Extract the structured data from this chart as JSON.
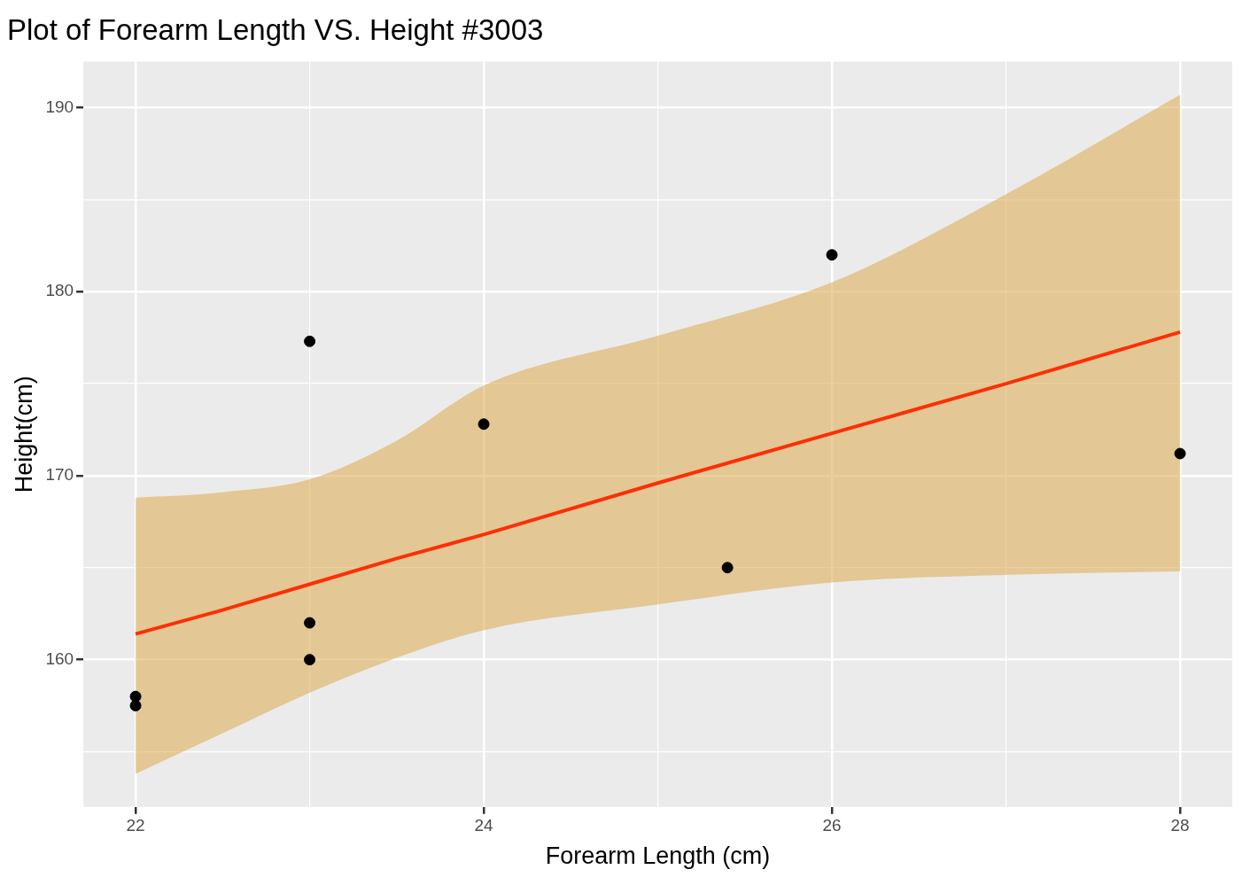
{
  "chart_data": {
    "type": "scatter",
    "title": "Plot of Forearm Length VS. Height #3003",
    "xlabel": "Forearm Length (cm)",
    "ylabel": "Height(cm)",
    "xlim": [
      21.7,
      28.3
    ],
    "ylim": [
      152,
      192.5
    ],
    "xticks": [
      22,
      {
        "value": 23,
        "label": null
      },
      24,
      {
        "value": 25,
        "label": null
      },
      26,
      {
        "value": 27,
        "label": null
      },
      28
    ],
    "yticks": [
      {
        "value": 155,
        "label": null
      },
      160,
      {
        "value": 165,
        "label": null
      },
      170,
      {
        "value": 175,
        "label": null
      },
      180,
      {
        "value": 185,
        "label": null
      },
      190
    ],
    "grid": true,
    "legend": false,
    "series": [
      {
        "color": "#000000",
        "marker": "circle",
        "x": [
          22,
          22,
          23,
          23,
          23,
          24,
          25.4,
          26,
          28
        ],
        "values": [
          158,
          157.5,
          177.3,
          162,
          160,
          172.8,
          165,
          182,
          171.2
        ]
      },
      {
        "type": "line",
        "color": "#fc2f06",
        "line_style": "solid",
        "x": [
          22,
          22.5,
          23,
          23.5,
          24,
          25,
          26,
          27,
          28
        ],
        "values": [
          161.4,
          162.7,
          164.1,
          165.5,
          166.8,
          169.6,
          172.3,
          175,
          177.8
        ],
        "lower": [
          153.8,
          156,
          158.2,
          160.1,
          161.6,
          163,
          164.2,
          164.6,
          164.8
        ],
        "upper": [
          168.8,
          169.1,
          169.8,
          171.9,
          174.9,
          177.6,
          180.5,
          185.3,
          190.7
        ]
      }
    ]
  }
}
